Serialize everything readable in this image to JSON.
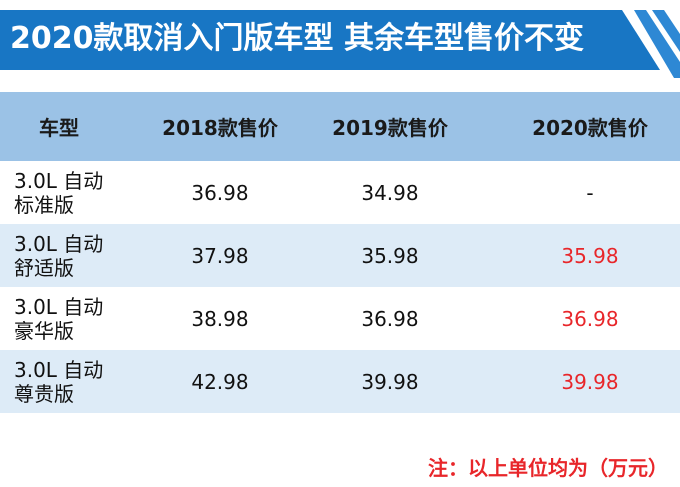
{
  "banner": {
    "title": "2020款取消入门版车型 其余车型售价不变",
    "colors": {
      "fill": "#1876c4",
      "stripe": "#2e88d4"
    }
  },
  "table": {
    "headers": {
      "model": "车型",
      "y2018": "2018款售价",
      "y2019": "2019款售价",
      "y2020": "2020款售价"
    },
    "rows": [
      {
        "model": "3.0L 自动标准版",
        "y2018": "36.98",
        "y2019": "34.98",
        "y2020": "-"
      },
      {
        "model": "3.0L 自动舒适版",
        "y2018": "37.98",
        "y2019": "35.98",
        "y2020": "35.98"
      },
      {
        "model": "3.0L 自动豪华版",
        "y2018": "38.98",
        "y2019": "36.98",
        "y2020": "36.98"
      },
      {
        "model": "3.0L 自动尊贵版",
        "y2018": "42.98",
        "y2019": "39.98",
        "y2020": "39.98"
      }
    ]
  },
  "note": "注：以上单位均为（万元）",
  "colors": {
    "header_bg": "#9bc2e6",
    "alt_row_bg": "#ddebf7",
    "highlight": "#e8262a"
  }
}
